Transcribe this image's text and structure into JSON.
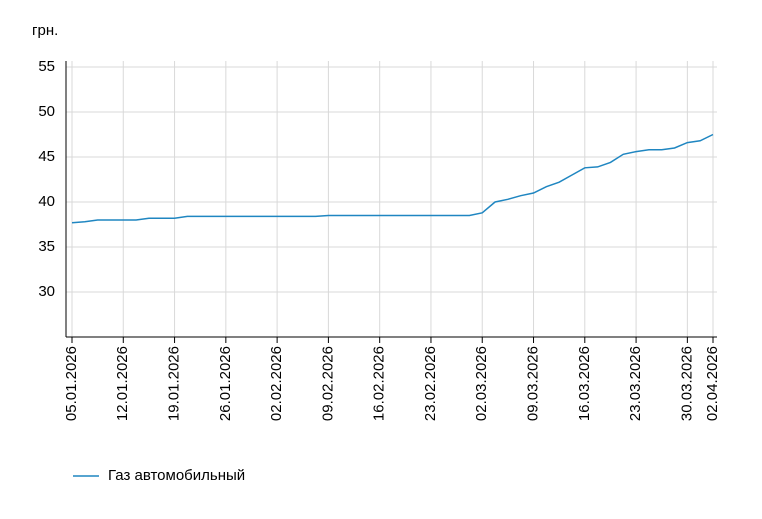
{
  "chart_data": {
    "type": "line",
    "y_label": "грн.",
    "categories": [
      "05.01.2026",
      null,
      null,
      null,
      "12.01.2026",
      null,
      null,
      null,
      "19.01.2026",
      null,
      null,
      null,
      "26.01.2026",
      null,
      null,
      null,
      "02.02.2026",
      null,
      null,
      null,
      "09.02.2026",
      null,
      null,
      null,
      "16.02.2026",
      null,
      null,
      null,
      "23.02.2026",
      null,
      null,
      null,
      "02.03.2026",
      null,
      null,
      null,
      "09.03.2026",
      null,
      null,
      null,
      "16.03.2026",
      null,
      null,
      null,
      "23.03.2026",
      null,
      null,
      null,
      "30.03.2026",
      null,
      "02.04.2026"
    ],
    "series": [
      {
        "name": "Газ автомобильный",
        "color": "#1f86c1",
        "values": [
          37.7,
          37.8,
          38.0,
          38.0,
          38.0,
          38.0,
          38.2,
          38.2,
          38.2,
          38.4,
          38.4,
          38.4,
          38.4,
          38.4,
          38.4,
          38.4,
          38.4,
          38.4,
          38.4,
          38.4,
          38.5,
          38.5,
          38.5,
          38.5,
          38.5,
          38.5,
          38.5,
          38.5,
          38.5,
          38.5,
          38.5,
          38.5,
          38.8,
          40.0,
          40.3,
          40.7,
          41.0,
          41.7,
          42.2,
          43.0,
          43.8,
          43.9,
          44.4,
          45.3,
          45.6,
          45.8,
          45.8,
          46.0,
          46.6,
          46.8,
          47.5
        ]
      }
    ],
    "ylim": [
      25,
      55
    ],
    "yticks": [
      30,
      35,
      40,
      45,
      50,
      55
    ],
    "grid": true
  }
}
